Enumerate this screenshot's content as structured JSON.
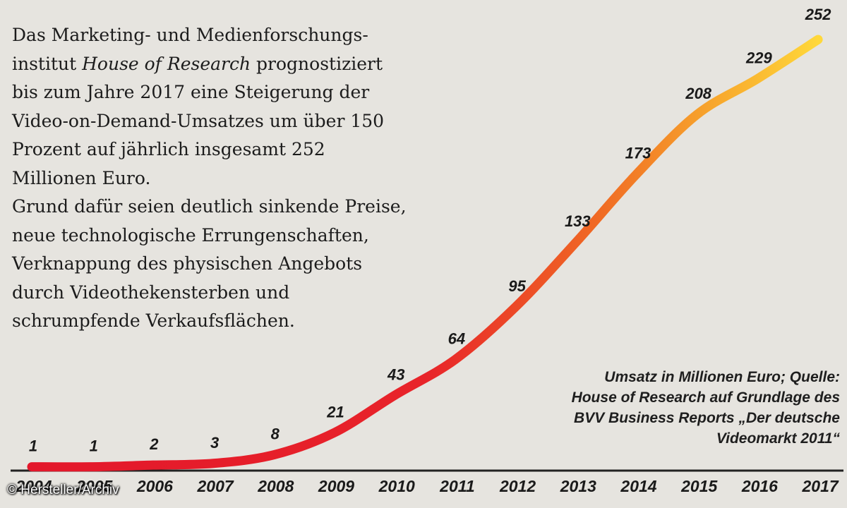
{
  "intro": {
    "p1_before": "Das Marketing- und Medienforschungs-institut ",
    "p1_italic": "House of Research",
    "p1_after": " prognostiziert bis zum Jahre 2017 eine Steigerung der Video-on-Demand-Umsatzes um über 150 Prozent auf jährlich insgesamt 252 Millionen Euro.",
    "p2": "Grund dafür seien deutlich sinkende Preise, neue technologische Errungenschaften, Verknappung des physischen Angebots durch Videothekensterben und schrumpfende Verkaufsflächen."
  },
  "source_note": {
    "line1": "Umsatz in Millionen Euro; Quelle:",
    "line2": "House of Research auf Grundlage des",
    "line3": "BVV Business Reports „Der deutsche",
    "line4": "Videomarkt 2011“"
  },
  "credit": "© Hersteller/Archiv",
  "colors": {
    "background": "#e6e4df",
    "line_start": "#e3172b",
    "line_mid": "#ef5a25",
    "line_end": "#ffd83a",
    "axis": "#222222"
  },
  "chart_data": {
    "type": "line",
    "title": "",
    "xlabel": "",
    "ylabel": "Umsatz in Millionen Euro",
    "categories": [
      "2004",
      "2005",
      "2006",
      "2007",
      "2008",
      "2009",
      "2010",
      "2011",
      "2012",
      "2013",
      "2014",
      "2015",
      "2016",
      "2017"
    ],
    "values": [
      1,
      1,
      2,
      3,
      8,
      21,
      43,
      64,
      95,
      133,
      173,
      208,
      229,
      252
    ],
    "ylim": [
      0,
      252
    ],
    "grid": false,
    "legend": "none"
  }
}
